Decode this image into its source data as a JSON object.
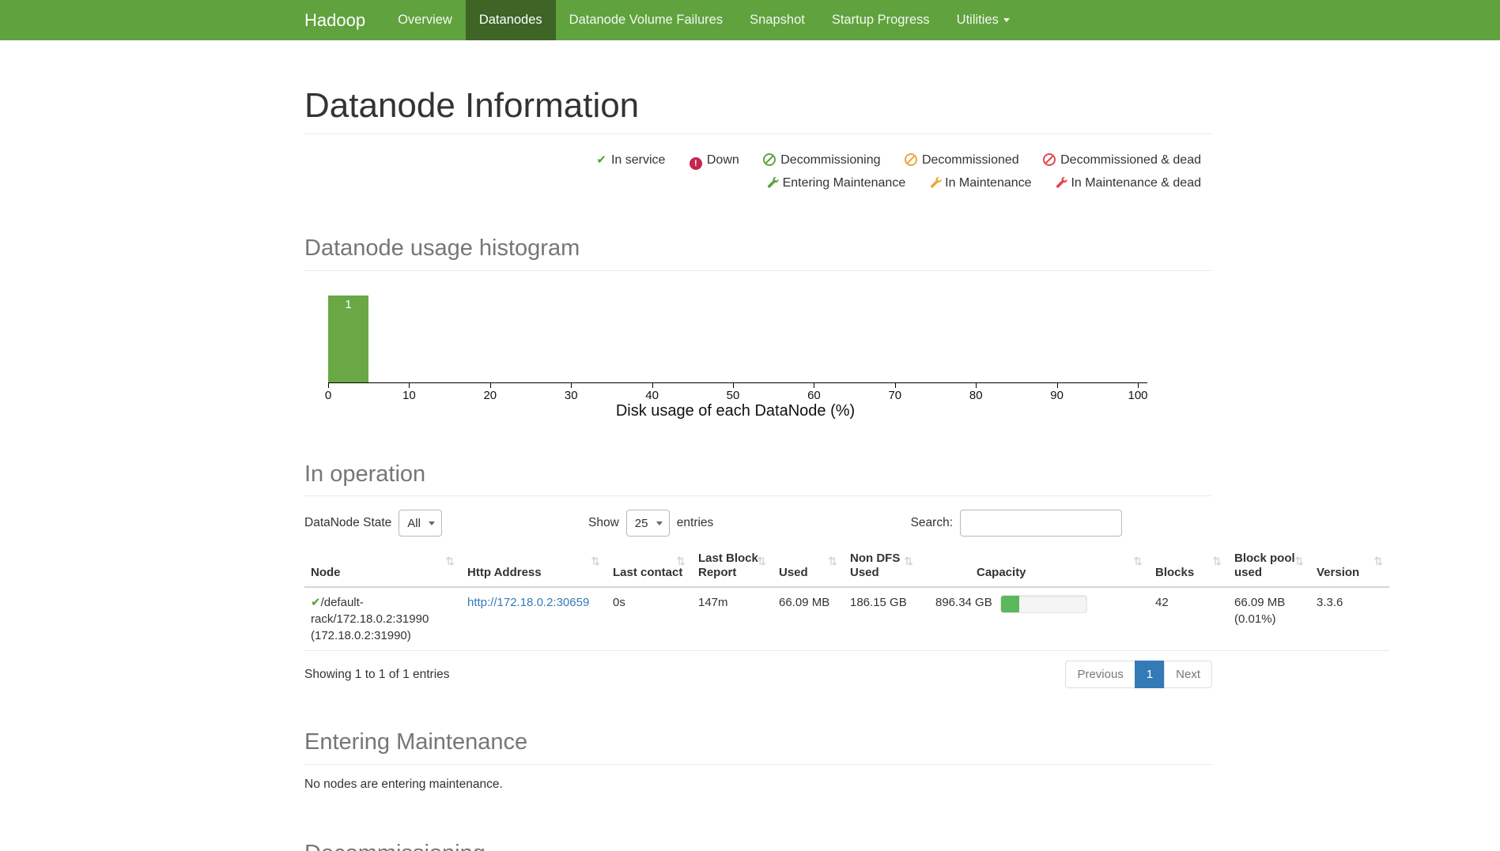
{
  "navbar": {
    "brand": "Hadoop",
    "items": [
      {
        "label": "Overview",
        "active": false
      },
      {
        "label": "Datanodes",
        "active": true
      },
      {
        "label": "Datanode Volume Failures",
        "active": false
      },
      {
        "label": "Snapshot",
        "active": false
      },
      {
        "label": "Startup Progress",
        "active": false
      },
      {
        "label": "Utilities",
        "active": false,
        "has_dropdown": true
      }
    ]
  },
  "page": {
    "title": "Datanode Information"
  },
  "legend": {
    "row1": [
      {
        "icon": "check-icon",
        "color": "#52a22c",
        "label": "In service"
      },
      {
        "icon": "exclamation-circle-icon",
        "color": "#c7254e",
        "label": "Down"
      },
      {
        "icon": "ban-icon",
        "color": "#5fa341",
        "label": "Decommissioning"
      },
      {
        "icon": "ban-icon",
        "color": "#eda63b",
        "label": "Decommissioned"
      },
      {
        "icon": "ban-icon",
        "color": "#e0484b",
        "label": "Decommissioned & dead"
      }
    ],
    "row2": [
      {
        "icon": "wrench-icon",
        "color": "#5fa341",
        "label": "Entering Maintenance"
      },
      {
        "icon": "wrench-icon",
        "color": "#eda63b",
        "label": "In Maintenance"
      },
      {
        "icon": "wrench-icon",
        "color": "#e0484b",
        "label": "In Maintenance & dead"
      }
    ]
  },
  "sections": {
    "in_operation_title": "In operation",
    "entering_maintenance_title": "Entering Maintenance",
    "entering_maintenance_empty": "No nodes are entering maintenance.",
    "decommissioning_title": "Decommissioning"
  },
  "chart_data": {
    "type": "bar",
    "title": "Datanode usage histogram",
    "xlabel": "Disk usage of each DataNode (%)",
    "ylabel": "",
    "xlim": [
      0,
      100
    ],
    "grid": false,
    "legend_position": "none",
    "ticks": [
      "0",
      "10",
      "20",
      "30",
      "40",
      "50",
      "60",
      "70",
      "80",
      "90",
      "100"
    ],
    "bins": [
      {
        "range": [
          0,
          5
        ],
        "count": 1
      }
    ],
    "bar_color": "#69a845"
  },
  "controls": {
    "datanode_state_label": "DataNode State",
    "datanode_state_value": "All",
    "show_label": "Show",
    "show_value": "25",
    "entries_label": "entries",
    "search_label": "Search:",
    "search_value": ""
  },
  "table": {
    "columns": [
      "Node",
      "Http Address",
      "Last contact",
      "Last Block Report",
      "Used",
      "Non DFS Used",
      "Capacity",
      "Blocks",
      "Block pool used",
      "Version"
    ],
    "row": {
      "node_state_icon": "check-icon",
      "node": "/default-rack/172.18.0.2:31990 (172.18.0.2:31990)",
      "http_address": "http://172.18.0.2:30659",
      "last_contact": "0s",
      "last_block_report": "147m",
      "used": "66.09 MB",
      "non_dfs_used": "186.15 GB",
      "capacity": "896.34 GB",
      "capacity_bar_percent": 22,
      "blocks": "42",
      "block_pool_used": "66.09 MB (0.01%)",
      "version": "3.3.6"
    },
    "summary": "Showing 1 to 1 of 1 entries",
    "pagination": {
      "previous": "Previous",
      "page": "1",
      "next": "Next"
    }
  },
  "colors": {
    "navbar_bg": "#60a23e",
    "navbar_active_bg": "#3e6426",
    "histogram_bar": "#69a845",
    "progress_fill": "#5cb85c",
    "link": "#337ab7",
    "pagination_active": "#337ab7"
  }
}
